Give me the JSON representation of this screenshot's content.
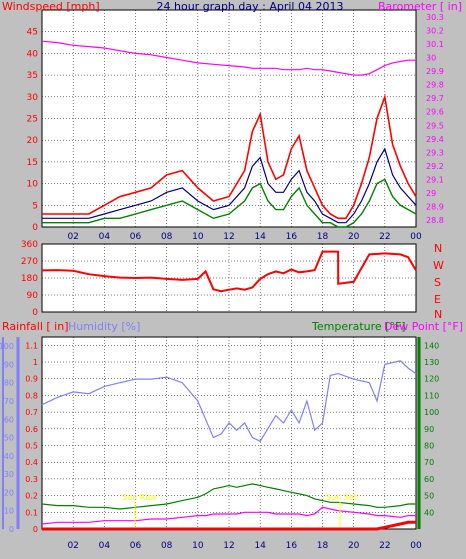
{
  "colors": {
    "bg": "#c0c0c0",
    "plot_bg": "#ffffff",
    "grid": "#000000",
    "wind": "#ff0000",
    "wind_avg": "#000080",
    "wind_low": "#008000",
    "barometer": "#ff00ff",
    "direction": "#ff0000",
    "rain": "#ff0000",
    "humidity": "#8080ff",
    "temperature": "#008000",
    "dewpoint": "#ff00ff",
    "sunrise": "#ffff00",
    "title": "#000080"
  },
  "chart_data": [
    {
      "type": "line",
      "title": "24 hour graph day : April 04 2013",
      "y_left_label": "Windspeed [mph]",
      "y_right_label": "Barometer [ in]",
      "x_ticks": [
        "02",
        "04",
        "06",
        "08",
        "10",
        "12",
        "14",
        "16",
        "18",
        "20",
        "22",
        "00"
      ],
      "y_left_ticks": [
        "0",
        "5",
        "10",
        "15",
        "20",
        "25",
        "30",
        "35",
        "40",
        "45"
      ],
      "y_left_range": [
        0,
        50
      ],
      "y_right_ticks": [
        "28.8",
        "28.9",
        "29",
        "29.1",
        "29.2",
        "29.3",
        "29.4",
        "29.5",
        "29.6",
        "29.7",
        "29.8",
        "29.9",
        "30",
        "30.1",
        "30.2",
        "30.3"
      ],
      "y_right_range": [
        28.75,
        30.35
      ],
      "x": [
        0,
        1,
        2,
        3,
        4,
        5,
        6,
        7,
        8,
        9,
        10,
        11,
        12,
        13,
        13.5,
        14,
        14.5,
        15,
        15.5,
        16,
        16.5,
        17,
        17.5,
        18,
        18.5,
        19,
        19.5,
        20,
        20.5,
        21,
        21.5,
        22,
        22.5,
        23,
        23.5,
        24
      ],
      "series": [
        {
          "name": "gust",
          "values": [
            3,
            3,
            3,
            3,
            5,
            7,
            8,
            9,
            12,
            13,
            9,
            6,
            7,
            13,
            22,
            26,
            15,
            11,
            12,
            18,
            21,
            13,
            9,
            5,
            3,
            2,
            2,
            5,
            10,
            16,
            25,
            30,
            19,
            14,
            10,
            7
          ]
        },
        {
          "name": "average",
          "values": [
            2,
            2,
            2,
            2,
            3,
            4,
            5,
            6,
            8,
            9,
            6,
            4,
            5,
            9,
            14,
            16,
            10,
            8,
            8,
            11,
            13,
            8,
            6,
            3,
            2,
            1,
            1,
            3,
            6,
            10,
            15,
            18,
            12,
            9,
            7,
            5
          ]
        },
        {
          "name": "low",
          "values": [
            1,
            1,
            1,
            1,
            2,
            2,
            3,
            4,
            5,
            6,
            4,
            2,
            3,
            6,
            9,
            10,
            6,
            4,
            4,
            7,
            9,
            5,
            3,
            1,
            1,
            0,
            0,
            1,
            3,
            6,
            10,
            11,
            7,
            5,
            4,
            3
          ]
        },
        {
          "name": "barometer",
          "values": [
            30.12,
            30.11,
            30.09,
            30.08,
            30.07,
            30.05,
            30.03,
            30.02,
            30.0,
            29.98,
            29.96,
            29.95,
            29.94,
            29.93,
            29.92,
            29.92,
            29.92,
            29.92,
            29.91,
            29.91,
            29.91,
            29.92,
            29.91,
            29.91,
            29.9,
            29.89,
            29.88,
            29.87,
            29.87,
            29.88,
            29.91,
            29.94,
            29.96,
            29.97,
            29.98,
            29.98
          ]
        }
      ]
    },
    {
      "type": "line",
      "y_right_labels": [
        "N",
        "W",
        "S",
        "E",
        "N"
      ],
      "y_left_ticks": [
        "0",
        "90",
        "180",
        "270",
        "360"
      ],
      "y_range": [
        0,
        360
      ],
      "x": [
        0,
        1,
        2,
        3,
        4,
        5,
        6,
        7,
        8,
        9,
        10,
        10.5,
        11,
        11.5,
        12,
        12.5,
        13,
        13.5,
        14,
        14.5,
        15,
        15.5,
        16,
        16.5,
        17,
        17.5,
        18,
        18.5,
        19,
        19.01,
        20,
        21,
        22,
        23,
        23.5,
        24
      ],
      "series": [
        {
          "name": "direction",
          "values": [
            220,
            222,
            218,
            200,
            190,
            182,
            180,
            182,
            175,
            170,
            175,
            215,
            120,
            110,
            118,
            125,
            118,
            130,
            175,
            200,
            215,
            205,
            225,
            210,
            215,
            222,
            320,
            320,
            320,
            150,
            160,
            305,
            310,
            305,
            290,
            220
          ]
        }
      ]
    },
    {
      "type": "line",
      "y_left_label": "Rainfall [ in]",
      "y_left2_label": "Humidity [%]",
      "y_right_label": "Temperature [°F]",
      "y_right2_label": "Dew Point [°F]",
      "rain_ticks": [
        "0",
        "0.1",
        "0.2",
        "0.3",
        "0.4",
        "0.5",
        "0.6",
        "0.7",
        "0.8",
        "0.9",
        "1",
        "1.1"
      ],
      "rain_range": [
        0,
        1.15
      ],
      "humidity_ticks": [
        "0",
        "10",
        "20",
        "30",
        "40",
        "50",
        "60",
        "70",
        "80",
        "90",
        "100"
      ],
      "humidity_range": [
        0,
        105
      ],
      "temp_ticks": [
        "40",
        "50",
        "60",
        "70",
        "80",
        "90",
        "100",
        "110",
        "120",
        "130",
        "140"
      ],
      "temp_range": [
        30,
        145
      ],
      "x": [
        0,
        1,
        2,
        3,
        4,
        5,
        6,
        7,
        8,
        9,
        10,
        10.5,
        11,
        11.5,
        12,
        12.5,
        13,
        13.5,
        14,
        14.5,
        15,
        15.5,
        16,
        16.5,
        17,
        17.5,
        18,
        18.5,
        19,
        20,
        21,
        21.5,
        22,
        23,
        23.5,
        24
      ],
      "series": [
        {
          "name": "humidity",
          "values": [
            68,
            72,
            75,
            74,
            78,
            80,
            82,
            82,
            83,
            80,
            70,
            60,
            50,
            52,
            58,
            54,
            58,
            50,
            48,
            55,
            62,
            58,
            65,
            58,
            70,
            54,
            58,
            84,
            85,
            82,
            80,
            70,
            90,
            92,
            88,
            85
          ]
        },
        {
          "name": "temperature",
          "values": [
            45,
            44,
            44,
            43,
            43,
            42,
            43,
            44,
            45,
            47,
            49,
            51,
            54,
            55,
            56,
            55,
            56,
            57,
            56,
            55,
            54,
            53,
            52,
            51,
            50,
            48,
            47,
            46,
            46,
            45,
            44,
            43,
            43,
            44,
            45,
            45
          ]
        },
        {
          "name": "dewpoint",
          "values": [
            33,
            34,
            34,
            34,
            35,
            35,
            35,
            36,
            36,
            37,
            38,
            38,
            39,
            39,
            39,
            39,
            40,
            40,
            40,
            40,
            39,
            39,
            39,
            39,
            38,
            39,
            43,
            42,
            41,
            40,
            39,
            38,
            38,
            37,
            38,
            38
          ]
        },
        {
          "name": "rain",
          "values": [
            0,
            0,
            0,
            0,
            0,
            0,
            0,
            0,
            0,
            0,
            0,
            0,
            0,
            0,
            0,
            0,
            0,
            0,
            0,
            0,
            0,
            0,
            0,
            0,
            0,
            0,
            0,
            0,
            0,
            0,
            0,
            0,
            0.01,
            0.03,
            0.04,
            0.04
          ]
        }
      ],
      "annotations": [
        "Sun Rise",
        "Sun Set"
      ]
    }
  ]
}
